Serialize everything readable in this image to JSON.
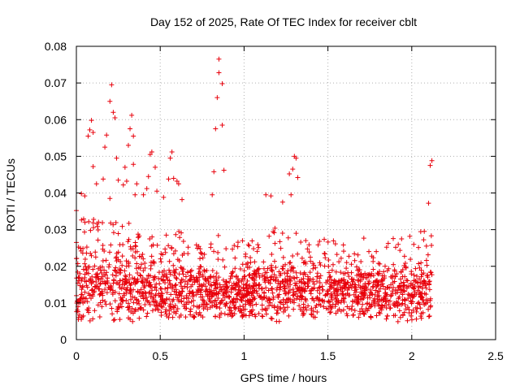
{
  "chart_data": {
    "type": "scatter",
    "title": "Day 152 of 2025, Rate Of TEC Index for receiver cblt",
    "xlabel": "GPS time / hours",
    "ylabel": "ROTI / TECUs",
    "xlim": [
      0,
      2.5
    ],
    "ylim": [
      0,
      0.08
    ],
    "xticks": [
      {
        "value": 0,
        "label": "0"
      },
      {
        "value": 0.5,
        "label": "0.5"
      },
      {
        "value": 1,
        "label": "1"
      },
      {
        "value": 1.5,
        "label": "1.5"
      },
      {
        "value": 2,
        "label": "2"
      },
      {
        "value": 2.5,
        "label": "2.5"
      }
    ],
    "yticks": [
      {
        "value": 0,
        "label": "0"
      },
      {
        "value": 0.01,
        "label": "0.01"
      },
      {
        "value": 0.02,
        "label": "0.02"
      },
      {
        "value": 0.03,
        "label": "0.03"
      },
      {
        "value": 0.04,
        "label": "0.04"
      },
      {
        "value": 0.05,
        "label": "0.05"
      },
      {
        "value": 0.06,
        "label": "0.06"
      },
      {
        "value": 0.07,
        "label": "0.07"
      },
      {
        "value": 0.08,
        "label": "0.08"
      }
    ],
    "grid": true,
    "marker": "+",
    "color": "#e8000b",
    "x_range_observed": [
      0,
      2.12
    ],
    "outliers": [
      {
        "x": 0.21,
        "y": 0.0695
      },
      {
        "x": 0.2,
        "y": 0.065
      },
      {
        "x": 0.22,
        "y": 0.062
      },
      {
        "x": 0.23,
        "y": 0.0605
      },
      {
        "x": 0.33,
        "y": 0.0612
      },
      {
        "x": 0.32,
        "y": 0.0575
      },
      {
        "x": 0.34,
        "y": 0.0555
      },
      {
        "x": 0.31,
        "y": 0.053
      },
      {
        "x": 0.09,
        "y": 0.0598
      },
      {
        "x": 0.08,
        "y": 0.0572
      },
      {
        "x": 0.1,
        "y": 0.0565
      },
      {
        "x": 0.07,
        "y": 0.0555
      },
      {
        "x": 0.18,
        "y": 0.0558
      },
      {
        "x": 0.17,
        "y": 0.0525
      },
      {
        "x": 0.24,
        "y": 0.0495
      },
      {
        "x": 0.29,
        "y": 0.047
      },
      {
        "x": 0.45,
        "y": 0.0512
      },
      {
        "x": 0.44,
        "y": 0.0505
      },
      {
        "x": 0.47,
        "y": 0.047
      },
      {
        "x": 0.43,
        "y": 0.0445
      },
      {
        "x": 0.57,
        "y": 0.0512
      },
      {
        "x": 0.56,
        "y": 0.0495
      },
      {
        "x": 0.58,
        "y": 0.044
      },
      {
        "x": 0.6,
        "y": 0.0432
      },
      {
        "x": 0.61,
        "y": 0.0425
      },
      {
        "x": 0.55,
        "y": 0.0438
      },
      {
        "x": 0.1,
        "y": 0.0472
      },
      {
        "x": 0.12,
        "y": 0.0425
      },
      {
        "x": 0.85,
        "y": 0.0765
      },
      {
        "x": 0.85,
        "y": 0.0728
      },
      {
        "x": 0.87,
        "y": 0.0698
      },
      {
        "x": 0.84,
        "y": 0.066
      },
      {
        "x": 0.83,
        "y": 0.0575
      },
      {
        "x": 0.87,
        "y": 0.0585
      },
      {
        "x": 0.82,
        "y": 0.0458
      },
      {
        "x": 0.88,
        "y": 0.0462
      },
      {
        "x": 0.81,
        "y": 0.0395
      },
      {
        "x": 1.3,
        "y": 0.05
      },
      {
        "x": 1.31,
        "y": 0.0495
      },
      {
        "x": 1.29,
        "y": 0.0465
      },
      {
        "x": 1.32,
        "y": 0.0442
      },
      {
        "x": 1.27,
        "y": 0.0452
      },
      {
        "x": 1.28,
        "y": 0.0395
      },
      {
        "x": 1.13,
        "y": 0.0395
      },
      {
        "x": 1.16,
        "y": 0.0392
      },
      {
        "x": 1.23,
        "y": 0.0375
      },
      {
        "x": 2.12,
        "y": 0.0488
      },
      {
        "x": 2.11,
        "y": 0.0475
      },
      {
        "x": 2.1,
        "y": 0.0372
      },
      {
        "x": 0.0,
        "y": 0.0352
      },
      {
        "x": 0.03,
        "y": 0.0398
      },
      {
        "x": 0.05,
        "y": 0.0392
      },
      {
        "x": 0.28,
        "y": 0.0422
      },
      {
        "x": 0.3,
        "y": 0.0432
      },
      {
        "x": 0.36,
        "y": 0.0425
      },
      {
        "x": 0.4,
        "y": 0.0395
      },
      {
        "x": 0.42,
        "y": 0.0412
      },
      {
        "x": 0.48,
        "y": 0.0405
      },
      {
        "x": 0.52,
        "y": 0.0388
      },
      {
        "x": 0.63,
        "y": 0.0382
      },
      {
        "x": 0.25,
        "y": 0.0435
      },
      {
        "x": 0.34,
        "y": 0.0478
      },
      {
        "x": 0.16,
        "y": 0.0438
      },
      {
        "x": 0.0,
        "y": 0.0265
      },
      {
        "x": 0.2,
        "y": 0.0385
      },
      {
        "x": 0.35,
        "y": 0.0395
      }
    ],
    "envelope": [
      {
        "x": 0.0,
        "lo": 0.005,
        "mid": 0.013,
        "hi": 0.034
      },
      {
        "x": 0.1,
        "lo": 0.005,
        "mid": 0.015,
        "hi": 0.033
      },
      {
        "x": 0.2,
        "lo": 0.005,
        "mid": 0.015,
        "hi": 0.032
      },
      {
        "x": 0.3,
        "lo": 0.004,
        "mid": 0.014,
        "hi": 0.033
      },
      {
        "x": 0.4,
        "lo": 0.006,
        "mid": 0.014,
        "hi": 0.03
      },
      {
        "x": 0.5,
        "lo": 0.006,
        "mid": 0.013,
        "hi": 0.028
      },
      {
        "x": 0.6,
        "lo": 0.006,
        "mid": 0.014,
        "hi": 0.03
      },
      {
        "x": 0.7,
        "lo": 0.006,
        "mid": 0.013,
        "hi": 0.028
      },
      {
        "x": 0.8,
        "lo": 0.006,
        "mid": 0.013,
        "hi": 0.028
      },
      {
        "x": 0.9,
        "lo": 0.006,
        "mid": 0.013,
        "hi": 0.03
      },
      {
        "x": 1.0,
        "lo": 0.006,
        "mid": 0.012,
        "hi": 0.028
      },
      {
        "x": 1.1,
        "lo": 0.006,
        "mid": 0.013,
        "hi": 0.029
      },
      {
        "x": 1.2,
        "lo": 0.004,
        "mid": 0.014,
        "hi": 0.031
      },
      {
        "x": 1.3,
        "lo": 0.006,
        "mid": 0.014,
        "hi": 0.03
      },
      {
        "x": 1.4,
        "lo": 0.006,
        "mid": 0.013,
        "hi": 0.026
      },
      {
        "x": 1.5,
        "lo": 0.006,
        "mid": 0.013,
        "hi": 0.028
      },
      {
        "x": 1.6,
        "lo": 0.006,
        "mid": 0.013,
        "hi": 0.026
      },
      {
        "x": 1.7,
        "lo": 0.006,
        "mid": 0.013,
        "hi": 0.028
      },
      {
        "x": 1.8,
        "lo": 0.006,
        "mid": 0.013,
        "hi": 0.028
      },
      {
        "x": 1.9,
        "lo": 0.005,
        "mid": 0.013,
        "hi": 0.031
      },
      {
        "x": 2.0,
        "lo": 0.004,
        "mid": 0.013,
        "hi": 0.032
      },
      {
        "x": 2.1,
        "lo": 0.005,
        "mid": 0.013,
        "hi": 0.03
      }
    ]
  }
}
